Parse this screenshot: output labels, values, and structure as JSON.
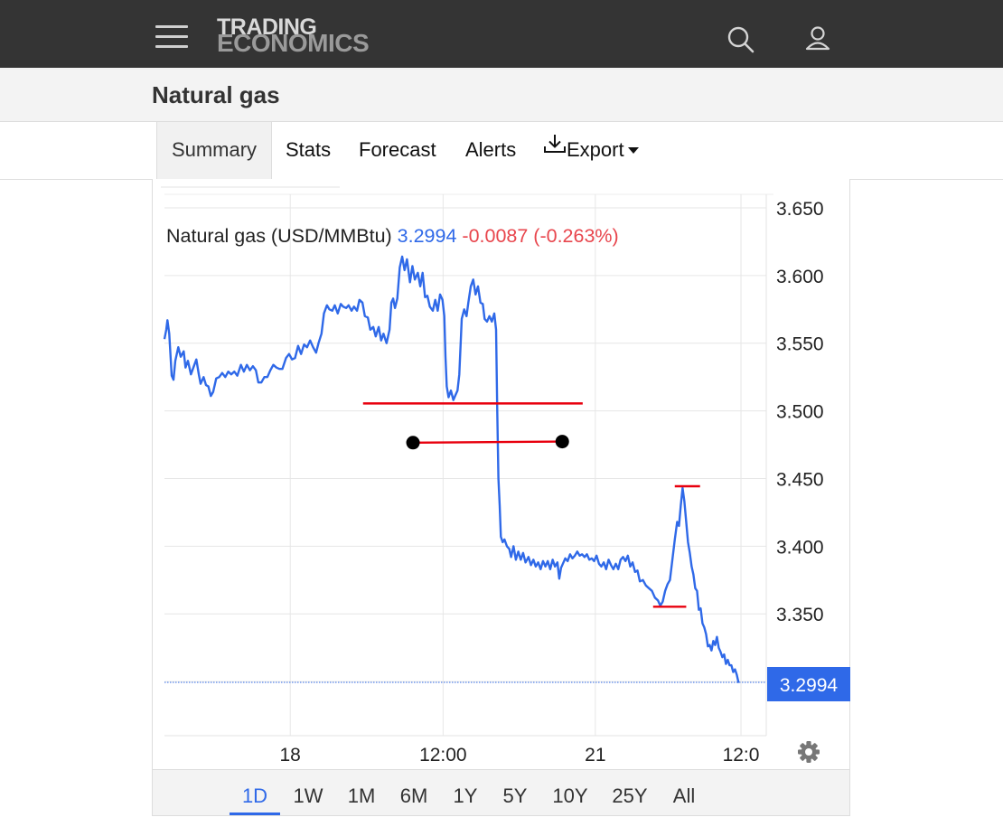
{
  "header": {
    "logo_line1": "TRADING",
    "logo_line2": "ECONOMICS",
    "menu_icon": "hamburger-menu-icon",
    "search_icon": "search-icon",
    "user_icon": "user-icon"
  },
  "page": {
    "title": "Natural gas"
  },
  "tabs": [
    {
      "label": "Summary",
      "active": true
    },
    {
      "label": "Stats"
    },
    {
      "label": "Forecast"
    },
    {
      "label": "Alerts"
    },
    {
      "label": "Export",
      "icon": "download-icon",
      "dropdown": true
    }
  ],
  "chart_data": {
    "type": "line",
    "legend": {
      "name": "Natural gas (USD/MMBtu)",
      "last": "3.2994",
      "change": "-0.0087 (-0.263%)"
    },
    "last_value": 3.2994,
    "last_label": "3.2994",
    "ylim": [
      3.26,
      3.66
    ],
    "yticks": [
      3.3,
      3.35,
      3.4,
      3.45,
      3.5,
      3.55,
      3.6,
      3.65
    ],
    "ytick_labels": [
      "3.350",
      "3.400",
      "3.450",
      "3.500",
      "3.550",
      "3.600",
      "3.650"
    ],
    "xlim": [
      0,
      100
    ],
    "xticks": [
      {
        "x": 20.9,
        "label": "18"
      },
      {
        "x": 46.3,
        "label": "12:00"
      },
      {
        "x": 71.6,
        "label": "21"
      },
      {
        "x": 95.8,
        "label": "12:0"
      }
    ],
    "grid": true,
    "colors": {
      "line": "#2f69e8",
      "up": "#2f69e8",
      "down": "#e8464d",
      "annotation": "#e8000e",
      "marker": "#000000"
    },
    "series": [
      {
        "points": [
          [
            0.0,
            3.553
          ],
          [
            0.3,
            3.56
          ],
          [
            0.5,
            3.567
          ],
          [
            0.8,
            3.557
          ],
          [
            1.2,
            3.526
          ],
          [
            1.5,
            3.523
          ],
          [
            1.8,
            3.537
          ],
          [
            2.3,
            3.547
          ],
          [
            2.7,
            3.54
          ],
          [
            3.2,
            3.544
          ],
          [
            3.5,
            3.532
          ],
          [
            3.9,
            3.537
          ],
          [
            4.4,
            3.527
          ],
          [
            4.8,
            3.532
          ],
          [
            5.3,
            3.538
          ],
          [
            5.7,
            3.527
          ],
          [
            6.0,
            3.52
          ],
          [
            6.5,
            3.525
          ],
          [
            6.9,
            3.519
          ],
          [
            7.3,
            3.518
          ],
          [
            7.7,
            3.511
          ],
          [
            8.1,
            3.514
          ],
          [
            8.6,
            3.524
          ],
          [
            9.1,
            3.525
          ],
          [
            9.6,
            3.528
          ],
          [
            10.1,
            3.525
          ],
          [
            10.6,
            3.529
          ],
          [
            11.1,
            3.527
          ],
          [
            11.6,
            3.529
          ],
          [
            12.1,
            3.526
          ],
          [
            12.7,
            3.534
          ],
          [
            13.2,
            3.529
          ],
          [
            13.7,
            3.534
          ],
          [
            14.2,
            3.53
          ],
          [
            14.7,
            3.533
          ],
          [
            15.2,
            3.53
          ],
          [
            15.6,
            3.521
          ],
          [
            16.1,
            3.521
          ],
          [
            16.6,
            3.525
          ],
          [
            17.1,
            3.525
          ],
          [
            17.6,
            3.53
          ],
          [
            18.1,
            3.534
          ],
          [
            18.6,
            3.532
          ],
          [
            19.1,
            3.531
          ],
          [
            19.6,
            3.531
          ],
          [
            20.2,
            3.539
          ],
          [
            20.7,
            3.542
          ],
          [
            21.2,
            3.538
          ],
          [
            21.7,
            3.539
          ],
          [
            22.2,
            3.548
          ],
          [
            22.7,
            3.542
          ],
          [
            23.2,
            3.549
          ],
          [
            23.7,
            3.547
          ],
          [
            24.2,
            3.552
          ],
          [
            24.7,
            3.547
          ],
          [
            25.2,
            3.543
          ],
          [
            25.6,
            3.55
          ],
          [
            26.1,
            3.557
          ],
          [
            26.5,
            3.572
          ],
          [
            27.0,
            3.578
          ],
          [
            27.4,
            3.575
          ],
          [
            27.9,
            3.574
          ],
          [
            28.3,
            3.578
          ],
          [
            28.8,
            3.572
          ],
          [
            29.3,
            3.579
          ],
          [
            29.7,
            3.577
          ],
          [
            30.2,
            3.576
          ],
          [
            30.6,
            3.578
          ],
          [
            31.1,
            3.574
          ],
          [
            31.5,
            3.577
          ],
          [
            32.0,
            3.574
          ],
          [
            32.4,
            3.582
          ],
          [
            32.9,
            3.58
          ],
          [
            33.3,
            3.57
          ],
          [
            33.8,
            3.569
          ],
          [
            34.2,
            3.56
          ],
          [
            34.7,
            3.562
          ],
          [
            35.1,
            3.555
          ],
          [
            35.6,
            3.562
          ],
          [
            36.0,
            3.552
          ],
          [
            36.4,
            3.557
          ],
          [
            36.9,
            3.55
          ],
          [
            37.4,
            3.56
          ],
          [
            37.7,
            3.58
          ],
          [
            38.0,
            3.583
          ],
          [
            38.3,
            3.576
          ],
          [
            38.7,
            3.583
          ],
          [
            39.1,
            3.606
          ],
          [
            39.5,
            3.614
          ],
          [
            39.9,
            3.604
          ],
          [
            40.3,
            3.612
          ],
          [
            40.8,
            3.595
          ],
          [
            41.2,
            3.607
          ],
          [
            41.6,
            3.597
          ],
          [
            42.1,
            3.602
          ],
          [
            42.5,
            3.592
          ],
          [
            42.9,
            3.602
          ],
          [
            43.3,
            3.584
          ],
          [
            43.7,
            3.585
          ],
          [
            44.1,
            3.577
          ],
          [
            44.6,
            3.574
          ],
          [
            45.0,
            3.582
          ],
          [
            45.4,
            3.574
          ],
          [
            45.8,
            3.586
          ],
          [
            46.2,
            3.582
          ],
          [
            46.5,
            3.57
          ],
          [
            46.7,
            3.54
          ],
          [
            46.9,
            3.518
          ],
          [
            47.2,
            3.51
          ],
          [
            47.6,
            3.515
          ],
          [
            48.0,
            3.508
          ],
          [
            48.4,
            3.512
          ],
          [
            48.7,
            3.515
          ],
          [
            49.0,
            3.527
          ],
          [
            49.4,
            3.568
          ],
          [
            49.8,
            3.575
          ],
          [
            50.2,
            3.57
          ],
          [
            50.5,
            3.58
          ],
          [
            50.9,
            3.592
          ],
          [
            51.3,
            3.597
          ],
          [
            51.7,
            3.586
          ],
          [
            52.1,
            3.592
          ],
          [
            52.5,
            3.58
          ],
          [
            52.9,
            3.579
          ],
          [
            53.2,
            3.568
          ],
          [
            53.6,
            3.566
          ],
          [
            54.0,
            3.57
          ],
          [
            54.4,
            3.566
          ],
          [
            54.8,
            3.572
          ],
          [
            55.1,
            3.56
          ],
          [
            55.3,
            3.5
          ],
          [
            55.5,
            3.45
          ],
          [
            55.7,
            3.43
          ],
          [
            55.9,
            3.407
          ],
          [
            56.2,
            3.403
          ],
          [
            56.5,
            3.405
          ],
          [
            56.9,
            3.4
          ],
          [
            57.3,
            3.398
          ],
          [
            57.6,
            3.392
          ],
          [
            58.0,
            3.4
          ],
          [
            58.4,
            3.39
          ],
          [
            58.8,
            3.396
          ],
          [
            59.2,
            3.39
          ],
          [
            59.6,
            3.395
          ],
          [
            60.0,
            3.388
          ],
          [
            60.5,
            3.392
          ],
          [
            60.9,
            3.386
          ],
          [
            61.3,
            3.39
          ],
          [
            61.7,
            3.385
          ],
          [
            62.1,
            3.388
          ],
          [
            62.5,
            3.383
          ],
          [
            62.9,
            3.389
          ],
          [
            63.3,
            3.385
          ],
          [
            63.7,
            3.389
          ],
          [
            64.1,
            3.383
          ],
          [
            64.5,
            3.39
          ],
          [
            64.9,
            3.385
          ],
          [
            65.3,
            3.388
          ],
          [
            65.6,
            3.376
          ],
          [
            65.9,
            3.384
          ],
          [
            66.2,
            3.387
          ],
          [
            66.6,
            3.391
          ],
          [
            67.0,
            3.389
          ],
          [
            67.4,
            3.394
          ],
          [
            67.8,
            3.391
          ],
          [
            68.2,
            3.393
          ],
          [
            68.6,
            3.396
          ],
          [
            69.0,
            3.393
          ],
          [
            69.4,
            3.394
          ],
          [
            69.8,
            3.392
          ],
          [
            70.2,
            3.394
          ],
          [
            70.6,
            3.39
          ],
          [
            71.0,
            3.391
          ],
          [
            71.4,
            3.389
          ],
          [
            71.8,
            3.393
          ],
          [
            72.2,
            3.387
          ],
          [
            72.6,
            3.385
          ],
          [
            73.0,
            3.388
          ],
          [
            73.4,
            3.383
          ],
          [
            73.8,
            3.39
          ],
          [
            74.2,
            3.386
          ],
          [
            74.6,
            3.383
          ],
          [
            75.0,
            3.387
          ],
          [
            75.4,
            3.383
          ],
          [
            75.8,
            3.39
          ],
          [
            76.2,
            3.392
          ],
          [
            76.6,
            3.389
          ],
          [
            77.0,
            3.393
          ],
          [
            77.4,
            3.385
          ],
          [
            77.8,
            3.388
          ],
          [
            78.2,
            3.381
          ],
          [
            78.6,
            3.382
          ],
          [
            79.0,
            3.374
          ],
          [
            79.5,
            3.375
          ],
          [
            80.0,
            3.371
          ],
          [
            80.5,
            3.369
          ],
          [
            81.0,
            3.367
          ],
          [
            81.5,
            3.362
          ],
          [
            82.0,
            3.36
          ],
          [
            82.4,
            3.356
          ],
          [
            82.8,
            3.359
          ],
          [
            83.2,
            3.367
          ],
          [
            83.6,
            3.372
          ],
          [
            84.0,
            3.375
          ],
          [
            84.4,
            3.39
          ],
          [
            84.8,
            3.405
          ],
          [
            85.2,
            3.418
          ],
          [
            85.5,
            3.415
          ],
          [
            85.8,
            3.43
          ],
          [
            86.1,
            3.443
          ],
          [
            86.4,
            3.433
          ],
          [
            86.7,
            3.418
          ],
          [
            87.0,
            3.403
          ],
          [
            87.3,
            3.395
          ],
          [
            87.6,
            3.385
          ],
          [
            87.9,
            3.379
          ],
          [
            88.2,
            3.369
          ],
          [
            88.5,
            3.367
          ],
          [
            88.8,
            3.353
          ],
          [
            89.1,
            3.354
          ],
          [
            89.4,
            3.343
          ],
          [
            89.7,
            3.34
          ],
          [
            90.0,
            3.335
          ],
          [
            90.3,
            3.326
          ],
          [
            90.6,
            3.327
          ],
          [
            90.9,
            3.323
          ],
          [
            91.2,
            3.33
          ],
          [
            91.5,
            3.327
          ],
          [
            91.8,
            3.333
          ],
          [
            92.1,
            3.325
          ],
          [
            92.4,
            3.322
          ],
          [
            92.7,
            3.318
          ],
          [
            93.0,
            3.32
          ],
          [
            93.3,
            3.313
          ],
          [
            93.6,
            3.316
          ],
          [
            93.9,
            3.312
          ],
          [
            94.2,
            3.312
          ],
          [
            94.5,
            3.307
          ],
          [
            94.8,
            3.309
          ],
          [
            95.1,
            3.305
          ],
          [
            95.4,
            3.299
          ]
        ]
      }
    ],
    "annotations": {
      "red_lines": [
        [
          [
            33.0,
            3.5055
          ],
          [
            69.5,
            3.5055
          ]
        ],
        [
          [
            84.8,
            3.4443
          ],
          [
            89.0,
            3.4443
          ]
        ],
        [
          [
            81.2,
            3.3553
          ],
          [
            86.7,
            3.3553
          ]
        ]
      ],
      "black_segment": [
        [
          41.3,
          3.4765
        ],
        [
          66.1,
          3.4773
        ]
      ]
    }
  },
  "ranges": [
    {
      "label": "1D",
      "active": true
    },
    {
      "label": "1W"
    },
    {
      "label": "1M"
    },
    {
      "label": "6M"
    },
    {
      "label": "1Y"
    },
    {
      "label": "5Y"
    },
    {
      "label": "10Y"
    },
    {
      "label": "25Y"
    },
    {
      "label": "All"
    }
  ],
  "settings_icon": "gear-icon"
}
